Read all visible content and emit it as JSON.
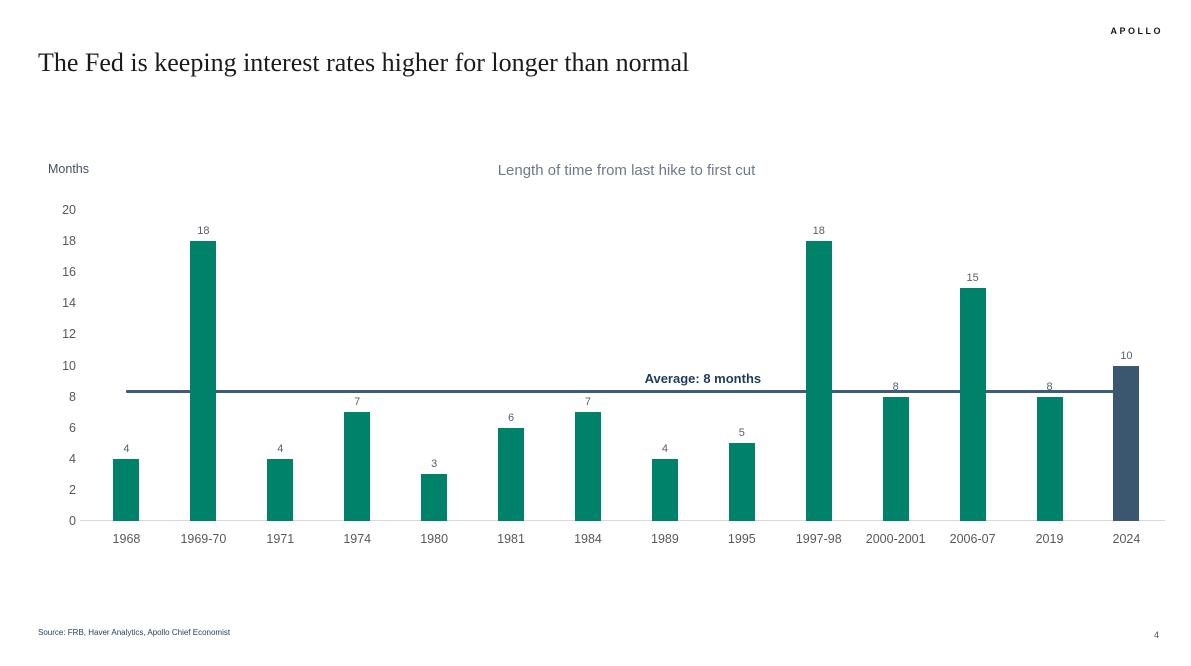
{
  "header": {
    "logo": "APOLLO",
    "title": "The Fed is keeping interest rates higher for longer than normal"
  },
  "chart_data": {
    "type": "bar",
    "title": "Length of time from last hike to first cut",
    "ylabel": "Months",
    "categories": [
      "1968",
      "1969-70",
      "1971",
      "1974",
      "1980",
      "1981",
      "1984",
      "1989",
      "1995",
      "1997-98",
      "2000-2001",
      "2006-07",
      "2019",
      "2024"
    ],
    "values": [
      4,
      18,
      4,
      7,
      3,
      6,
      7,
      4,
      5,
      18,
      8,
      15,
      8,
      10
    ],
    "ylim": [
      0,
      20
    ],
    "yticks": [
      0,
      2,
      4,
      6,
      8,
      10,
      12,
      14,
      16,
      18,
      20
    ],
    "grid": false,
    "legend": "none",
    "data_labels": true,
    "bar_color": "#008169",
    "highlight_index": 13,
    "highlight_color": "#3b5770",
    "average_line": {
      "value": 8.3,
      "label": "Average: 8 months",
      "color": "#3e5c7a"
    }
  },
  "footer": {
    "source": "Source: FRB, Haver Analytics, Apollo Chief Economist",
    "page_number": "4"
  }
}
